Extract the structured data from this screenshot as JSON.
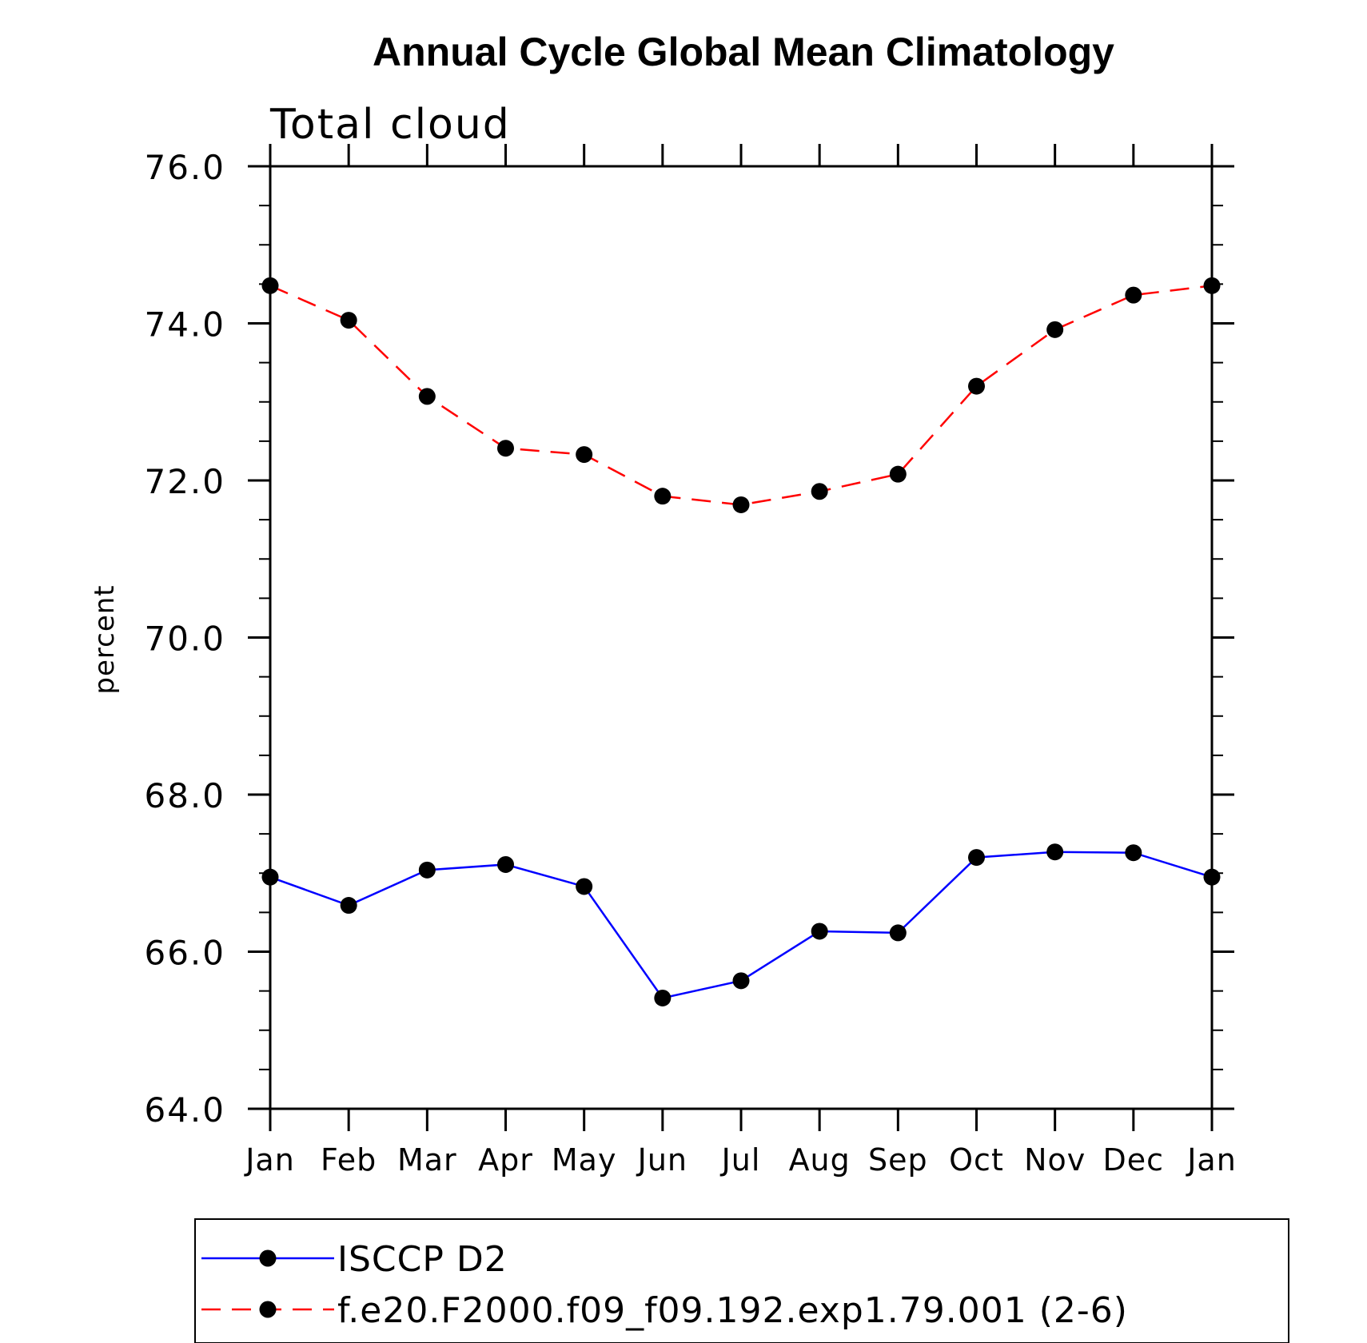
{
  "chart_data": {
    "type": "line",
    "title": "Annual Cycle Global Mean Climatology",
    "subtitle": "Total cloud",
    "xlabel": "",
    "ylabel": "percent",
    "categories": [
      "Jan",
      "Feb",
      "Mar",
      "Apr",
      "May",
      "Jun",
      "Jul",
      "Aug",
      "Sep",
      "Oct",
      "Nov",
      "Dec",
      "Jan"
    ],
    "ylim": [
      64.0,
      76.0
    ],
    "yticks": [
      "64.0",
      "66.0",
      "68.0",
      "70.0",
      "72.0",
      "74.0",
      "76.0"
    ],
    "grid": false,
    "legend_position": "bottom",
    "series": [
      {
        "name": "ISCCP D2",
        "color": "#0000ff",
        "dash": "solid",
        "marker": "circle",
        "values": [
          66.95,
          66.59,
          67.04,
          67.11,
          66.83,
          65.41,
          65.63,
          66.26,
          66.24,
          67.2,
          67.27,
          67.26,
          66.95
        ]
      },
      {
        "name": "f.e20.F2000.f09_f09.192.exp1.79.001 (2-6)",
        "color": "#ff0000",
        "dash": "dashed",
        "marker": "circle",
        "values": [
          74.48,
          74.04,
          73.07,
          72.41,
          72.33,
          71.8,
          71.69,
          71.86,
          72.08,
          73.2,
          73.92,
          74.36,
          74.48
        ]
      }
    ]
  }
}
